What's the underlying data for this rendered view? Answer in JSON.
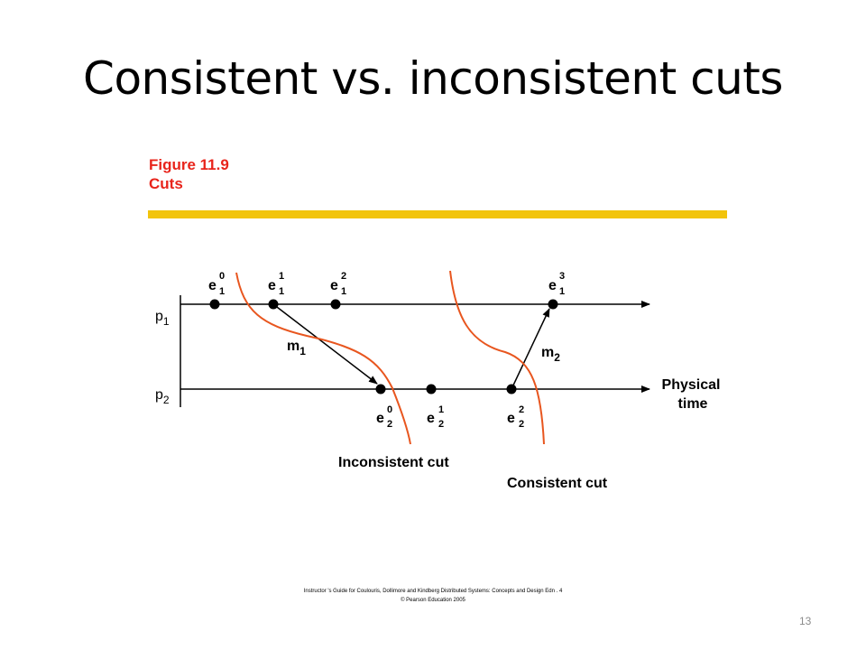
{
  "slide": {
    "title": "Consistent vs. inconsistent cuts",
    "page_number": "13"
  },
  "figure": {
    "number": "Figure 11.9",
    "name": "Cuts",
    "colors": {
      "caption": "#e8241b",
      "bar": "#f2c40c",
      "cut_curve": "#e8561f"
    }
  },
  "diagram": {
    "processes": [
      {
        "base": "p",
        "sub": "1"
      },
      {
        "base": "p",
        "sub": "2"
      }
    ],
    "time_label": [
      "Physical",
      "time"
    ],
    "events_p1": [
      {
        "base": "e",
        "sub": "1",
        "sup": "0"
      },
      {
        "base": "e",
        "sub": "1",
        "sup": "1"
      },
      {
        "base": "e",
        "sub": "1",
        "sup": "2"
      },
      {
        "base": "e",
        "sub": "1",
        "sup": "3"
      }
    ],
    "events_p2": [
      {
        "base": "e",
        "sub": "2",
        "sup": "0"
      },
      {
        "base": "e",
        "sub": "2",
        "sup": "1"
      },
      {
        "base": "e",
        "sub": "2",
        "sup": "2"
      }
    ],
    "messages": [
      {
        "base": "m",
        "sub": "1"
      },
      {
        "base": "m",
        "sub": "2"
      }
    ],
    "cuts": {
      "inconsistent": "Inconsistent cut",
      "consistent": "Consistent cut"
    }
  },
  "credits": {
    "line1": "Instructor 's Guide for   Coulouris,  Dollimore  and  Kindberg    Distributed Systems: Concepts and Design       Edn . 4",
    "line2": "© Pearson Education 2005"
  }
}
